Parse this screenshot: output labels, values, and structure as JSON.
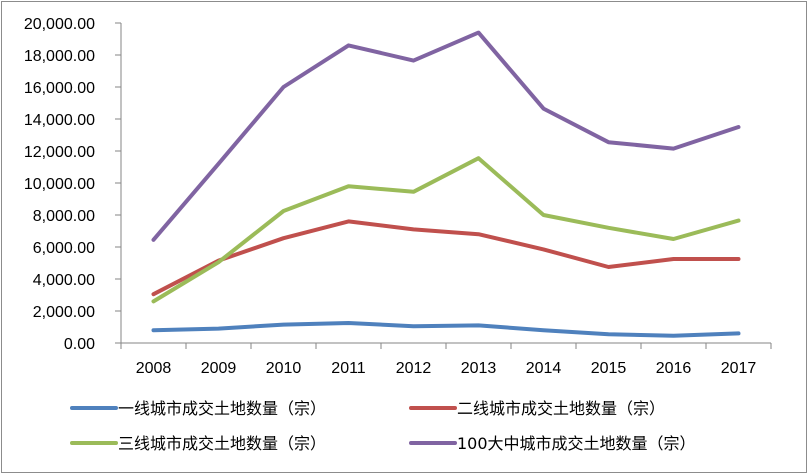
{
  "chart_data": {
    "type": "line",
    "title": "",
    "xlabel": "",
    "ylabel": "",
    "categories": [
      "2008",
      "2009",
      "2010",
      "2011",
      "2012",
      "2013",
      "2014",
      "2015",
      "2016",
      "2017"
    ],
    "ylim": [
      0,
      20000
    ],
    "yticks": [
      0,
      2000,
      4000,
      6000,
      8000,
      10000,
      12000,
      14000,
      16000,
      18000,
      20000
    ],
    "ytick_labels": [
      "0.00",
      "2,000.00",
      "4,000.00",
      "6,000.00",
      "8,000.00",
      "10,000.00",
      "12,000.00",
      "14,000.00",
      "16,000.00",
      "18,000.00",
      "20,000.00"
    ],
    "grid": false,
    "legend_position": "bottom",
    "series": [
      {
        "name": "一线城市成交土地数量（宗）",
        "color": "#4F81BD",
        "values": [
          800,
          900,
          1150,
          1250,
          1050,
          1100,
          800,
          550,
          450,
          600
        ]
      },
      {
        "name": "二线城市成交土地数量（宗）",
        "color": "#C0504D",
        "values": [
          3050,
          5150,
          6550,
          7600,
          7100,
          6800,
          5850,
          4750,
          5250,
          5250
        ]
      },
      {
        "name": "三线城市成交土地数量（宗）",
        "color": "#9BBB59",
        "values": [
          2600,
          5050,
          8250,
          9800,
          9450,
          11550,
          8000,
          7200,
          6500,
          7650
        ]
      },
      {
        "name": "100大中城市成交土地数量（宗）",
        "color": "#8064A2",
        "values": [
          6450,
          11200,
          16000,
          18600,
          17650,
          19400,
          14650,
          12550,
          12150,
          13500
        ]
      }
    ]
  }
}
